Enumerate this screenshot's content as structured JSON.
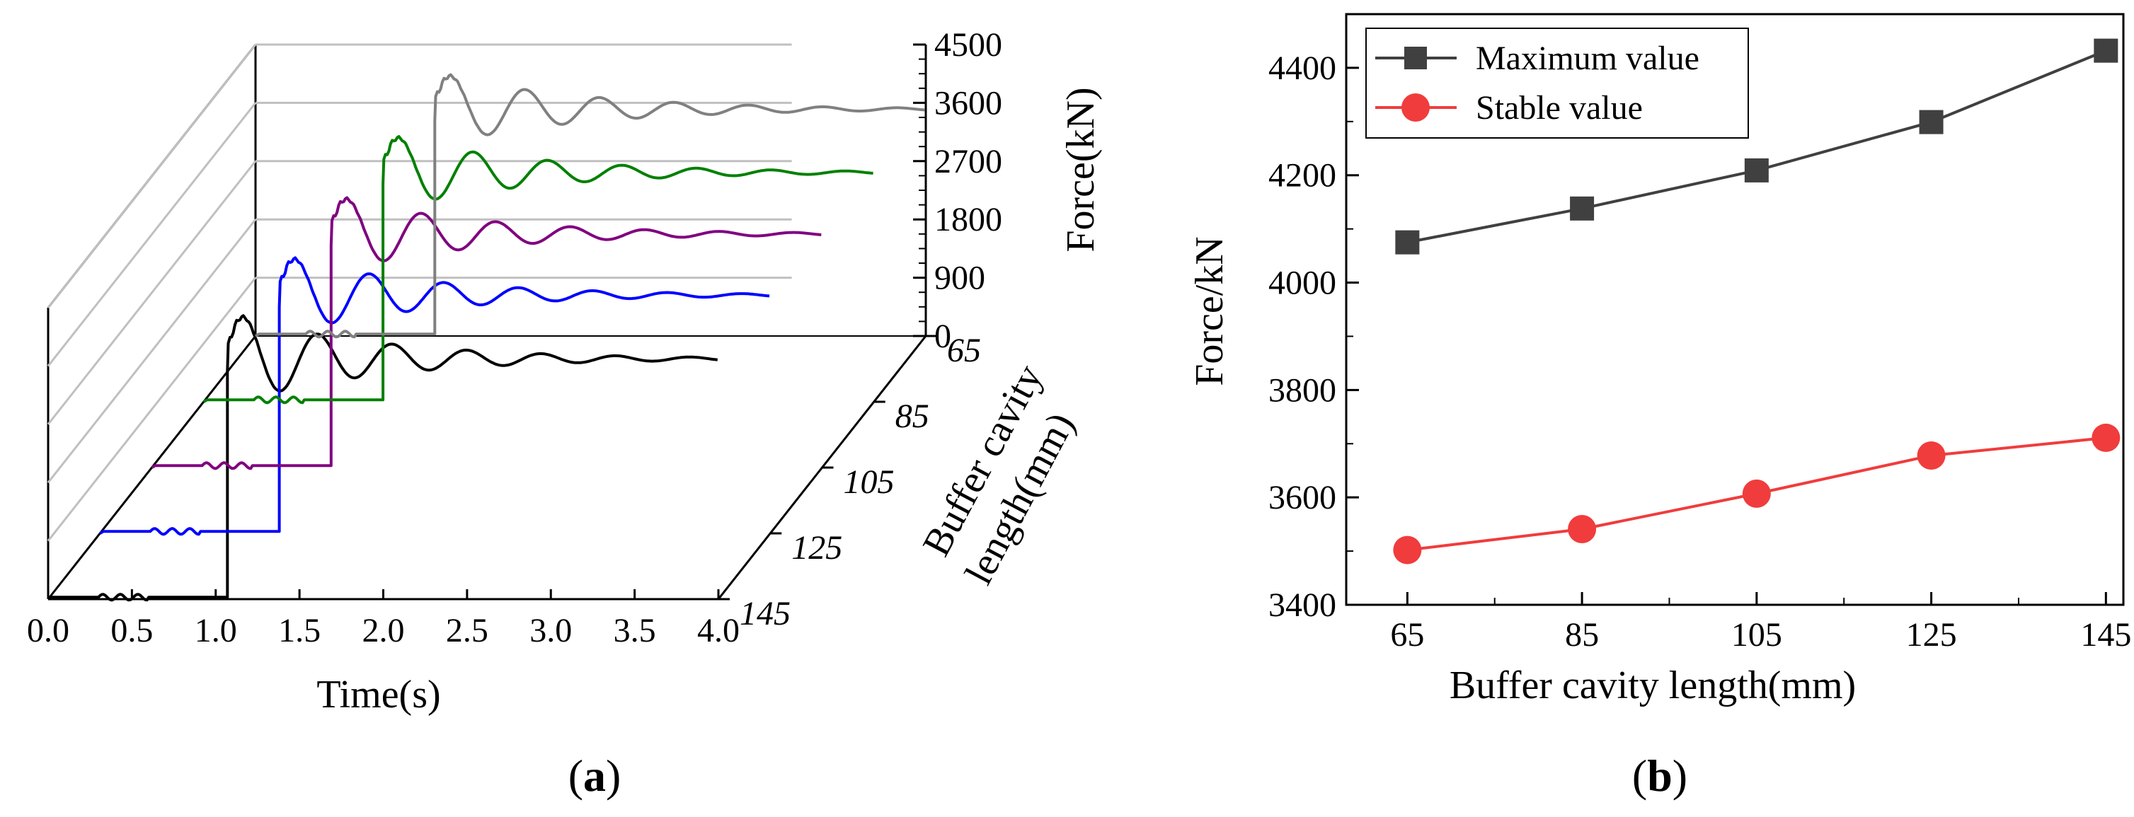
{
  "chart_data": [
    {
      "panel": "(a)",
      "panel_letter": "a",
      "type": "line",
      "subtype": "3d-waterfall",
      "xlabel": "Time(s)",
      "zlabel": "Force(kN)",
      "ylabel": "Buffer cavity length(mm)",
      "ylabel_line1": "Buffer cavity",
      "ylabel_line2": "length(mm)",
      "xlim": [
        0.0,
        4.0
      ],
      "zlim": [
        0,
        4500
      ],
      "x_ticks": [
        "0.0",
        "0.5",
        "1.0",
        "1.5",
        "2.0",
        "2.5",
        "3.0",
        "3.5",
        "4.0"
      ],
      "z_ticks": [
        "0",
        "900",
        "1800",
        "2700",
        "3600",
        "4500"
      ],
      "y_ticks": [
        "65",
        "85",
        "105",
        "125",
        "145"
      ],
      "series": [
        {
          "name": "65",
          "color": "#808080",
          "impact_time": 1.07,
          "peak": 4075,
          "stable": 3502,
          "pre_impact_level": 30
        },
        {
          "name": "85",
          "color": "#008000",
          "impact_time": 1.07,
          "peak": 4138,
          "stable": 3541,
          "pre_impact_level": 30
        },
        {
          "name": "105",
          "color": "#800080",
          "impact_time": 1.07,
          "peak": 4209,
          "stable": 3607,
          "pre_impact_level": 30
        },
        {
          "name": "125",
          "color": "#0000ff",
          "impact_time": 1.07,
          "peak": 4299,
          "stable": 3678,
          "pre_impact_level": 30
        },
        {
          "name": "145",
          "color": "#000000",
          "impact_time": 1.07,
          "peak": 4432,
          "stable": 3711,
          "pre_impact_level": 30
        }
      ]
    },
    {
      "panel": "(b)",
      "panel_letter": "b",
      "type": "line",
      "xlabel": "Buffer cavity length(mm)",
      "ylabel": "Force/kN",
      "categories": [
        65,
        85,
        105,
        125,
        145
      ],
      "x_ticks": [
        "65",
        "85",
        "105",
        "125",
        "145"
      ],
      "y_ticks": [
        "3400",
        "3600",
        "3800",
        "4000",
        "4200",
        "4400"
      ],
      "ylim": [
        3400,
        4500
      ],
      "xlim": [
        58,
        147
      ],
      "grid": false,
      "legend_position": "top-left",
      "series": [
        {
          "name": "Maximum value",
          "marker": "square",
          "color": "#404040",
          "values": [
            4075,
            4138,
            4209,
            4299,
            4432
          ]
        },
        {
          "name": "Stable value",
          "marker": "circle",
          "color": "#f03c3c",
          "values": [
            3502,
            3541,
            3607,
            3678,
            3711
          ]
        }
      ]
    }
  ]
}
